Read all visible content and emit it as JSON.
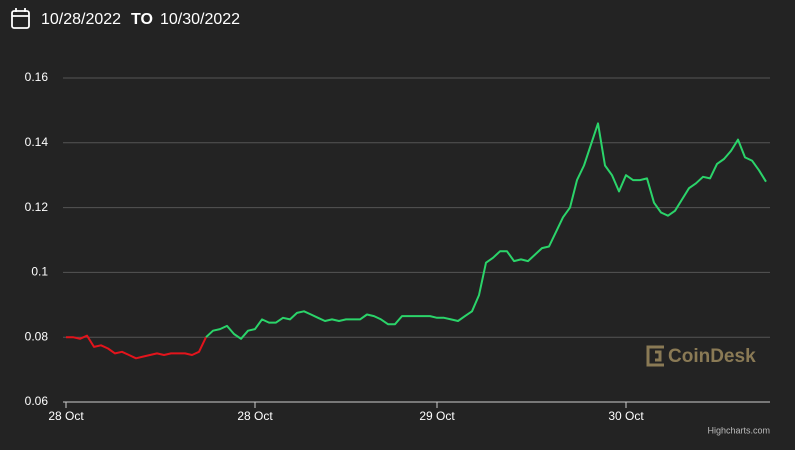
{
  "header": {
    "from": "10/28/2022",
    "separator": "TO",
    "to": "10/30/2022"
  },
  "watermark": "CoinDesk",
  "credit": "Highcharts.com",
  "chart_data": {
    "type": "line",
    "categories": [
      "28 Oct",
      null,
      null,
      null,
      null,
      null,
      null,
      null,
      null,
      null,
      null,
      null,
      null,
      null,
      null,
      null,
      null,
      null,
      null,
      null,
      null,
      null,
      null,
      null,
      null,
      null,
      null,
      "28 Oct",
      null,
      null,
      null,
      null,
      null,
      null,
      null,
      null,
      null,
      null,
      null,
      null,
      null,
      null,
      null,
      null,
      null,
      null,
      null,
      null,
      null,
      null,
      null,
      null,
      null,
      "29 Oct",
      null,
      null,
      null,
      null,
      null,
      null,
      null,
      null,
      null,
      null,
      null,
      null,
      null,
      null,
      null,
      null,
      null,
      null,
      null,
      null,
      null,
      null,
      null,
      null,
      null,
      null,
      "30 Oct",
      null,
      null,
      null,
      null,
      null,
      null,
      null,
      null,
      null,
      null,
      null,
      null,
      null,
      null,
      null,
      null,
      null,
      null,
      null,
      null
    ],
    "series": [
      {
        "color": "#e3141c",
        "values": [
          0.08,
          0.08,
          0.0795,
          0.0805,
          0.077,
          0.0775,
          0.0765,
          0.075,
          0.0755,
          0.0745,
          0.0735,
          0.074,
          0.0745,
          0.075,
          0.0745,
          0.075,
          0.075,
          0.075,
          0.0745,
          0.0755,
          0.08,
          null,
          null,
          null,
          null,
          null,
          null,
          null,
          null,
          null,
          null,
          null,
          null,
          null,
          null,
          null,
          null,
          null,
          null,
          null,
          null,
          null,
          null,
          null,
          null,
          null,
          null,
          null,
          null,
          null,
          null,
          null,
          null,
          null,
          null,
          null,
          null,
          null,
          null,
          null,
          null,
          null,
          null,
          null,
          null,
          null,
          null,
          null,
          null,
          null,
          null,
          null,
          null,
          null,
          null,
          null,
          null,
          null,
          null,
          null,
          null,
          null,
          null,
          null,
          null,
          null,
          null,
          null,
          null,
          null,
          null,
          null,
          null,
          null,
          null,
          null,
          null,
          null,
          null,
          null,
          null
        ]
      },
      {
        "color": "#2bd46a",
        "values": [
          null,
          null,
          null,
          null,
          null,
          null,
          null,
          null,
          null,
          null,
          null,
          null,
          null,
          null,
          null,
          null,
          null,
          null,
          null,
          null,
          0.08,
          0.082,
          0.0825,
          0.0835,
          0.081,
          0.0795,
          0.082,
          0.0825,
          0.0855,
          0.0845,
          0.0845,
          0.086,
          0.0855,
          0.0875,
          0.088,
          0.087,
          0.086,
          0.085,
          0.0855,
          0.085,
          0.0855,
          0.0855,
          0.0855,
          0.087,
          0.0865,
          0.0855,
          0.084,
          0.084,
          0.0865,
          0.0865,
          0.0865,
          0.0865,
          0.0865,
          0.086,
          0.086,
          0.0855,
          0.085,
          0.0865,
          0.088,
          0.093,
          0.103,
          0.1045,
          0.1065,
          0.1065,
          0.1035,
          0.104,
          0.1035,
          0.1055,
          0.1075,
          0.108,
          0.1125,
          0.117,
          0.12,
          0.1285,
          0.133,
          0.1395,
          0.146,
          0.133,
          0.13,
          0.125,
          0.13,
          0.1285,
          0.1285,
          0.129,
          0.1215,
          0.1185,
          0.1175,
          0.119,
          0.1225,
          0.126,
          0.1275,
          0.1295,
          0.129,
          0.1335,
          0.135,
          0.1375,
          0.141,
          0.1355,
          0.1345,
          0.1315,
          0.128
        ]
      }
    ],
    "ylim": [
      0.06,
      0.16
    ],
    "yticks": [
      0.06,
      0.08,
      0.1,
      0.12,
      0.14,
      0.16
    ],
    "grid": true
  }
}
